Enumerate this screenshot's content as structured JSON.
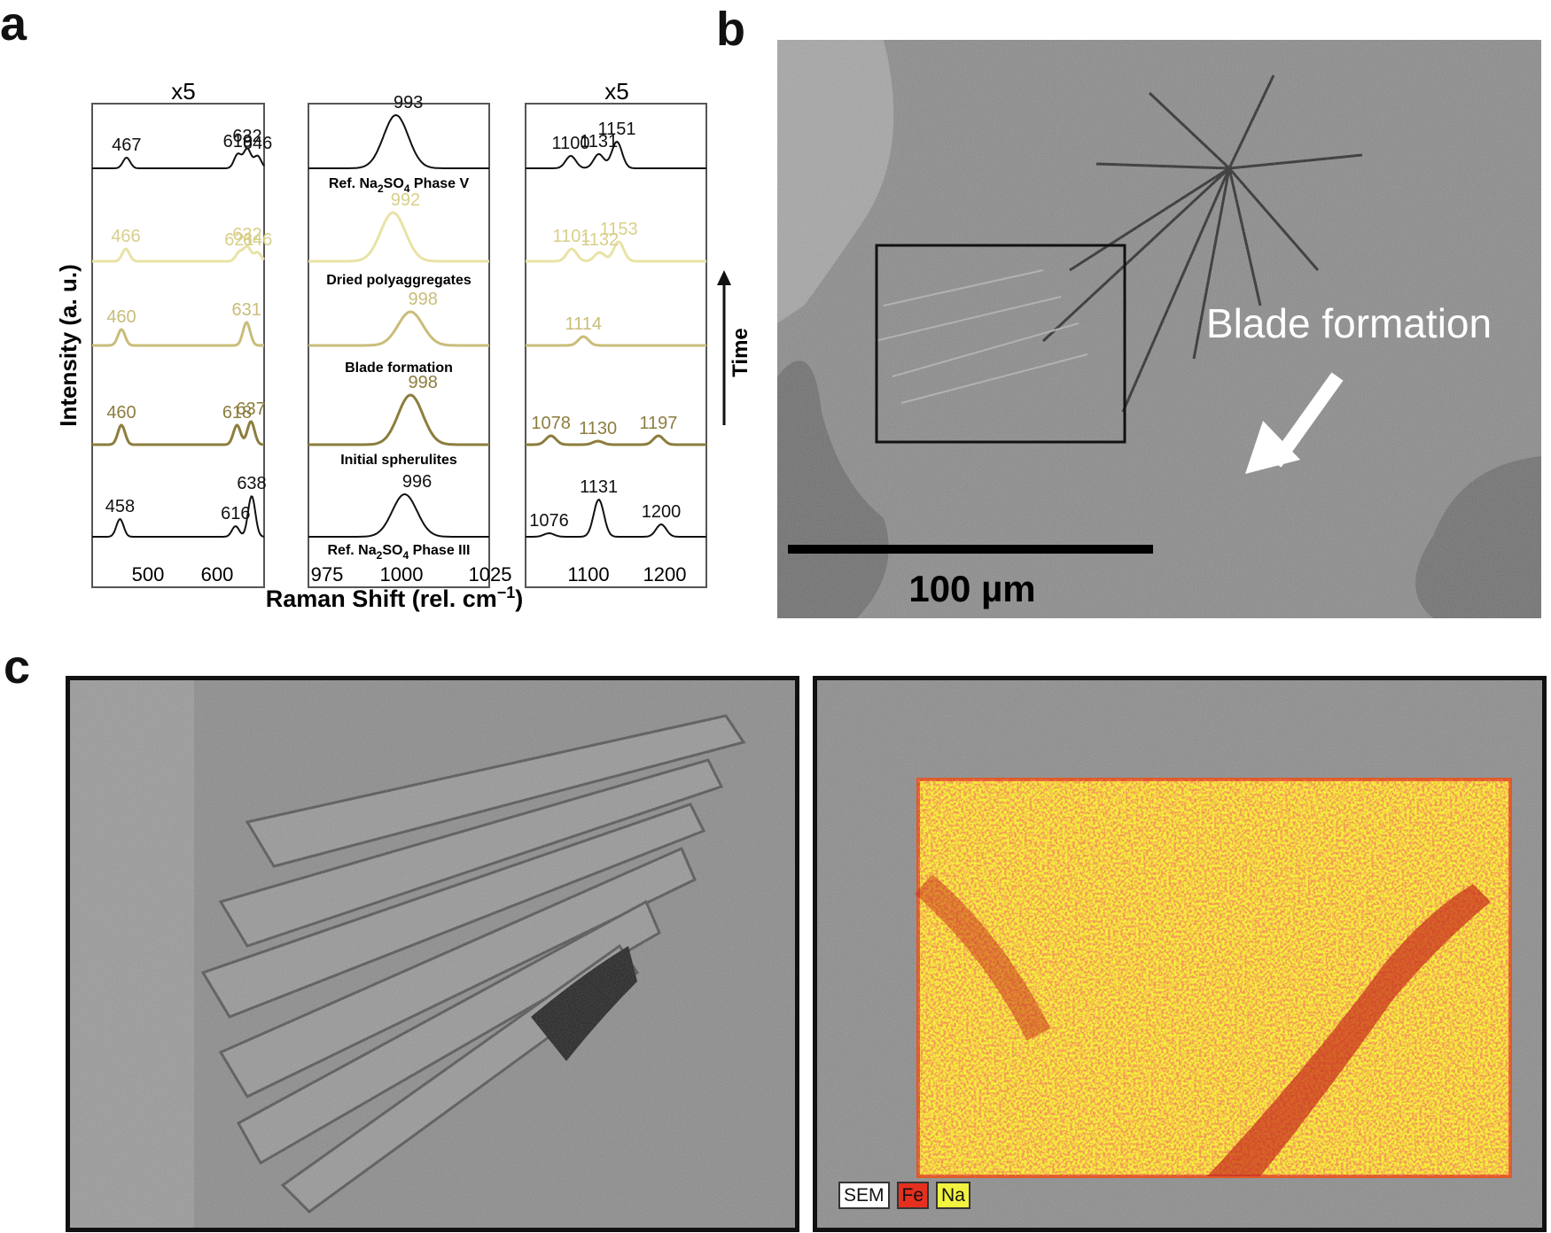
{
  "panels": {
    "a": "a",
    "b": "b",
    "c": "c"
  },
  "raman": {
    "ylabel": "Intensity (a. u.)",
    "xlabel": "Raman Shift (rel. cm",
    "xlabel_sup": "−1",
    "xlabel_close": ")",
    "time_label": "Time",
    "left_title": "x5",
    "right_title": "x5",
    "left_ticks": [
      "500",
      "600"
    ],
    "mid_ticks": [
      "975",
      "1000",
      "1025"
    ],
    "right_ticks": [
      "1100",
      "1200"
    ],
    "conditions": [
      "Ref. Na2SO4 Phase V",
      "Dried polyaggregates",
      "Blade formation",
      "Initial spherulites",
      "Ref. Na2SO4 Phase III"
    ],
    "colors": [
      "#111111",
      "#e8e3a6",
      "#c9bd79",
      "#8c7d3e",
      "#111111"
    ]
  },
  "chart_data": {
    "type": "line",
    "xlabel": "Raman Shift (rel. cm−1)",
    "ylabel": "Intensity (a. u.)",
    "panels": [
      {
        "name": "left",
        "annotation": "x5",
        "xlim": [
          420,
          655
        ],
        "ticks": [
          500,
          600
        ]
      },
      {
        "name": "middle",
        "xlim": [
          963,
          1025
        ],
        "ticks": [
          975,
          1000,
          1025
        ]
      },
      {
        "name": "right",
        "annotation": "x5",
        "xlim": [
          1050,
          1250
        ],
        "ticks": [
          1100,
          1200
        ]
      }
    ],
    "series": [
      {
        "name": "Ref. Na2SO4 Phase V",
        "left_peaks": [
          467,
          619,
          632,
          646
        ],
        "middle_peaks": [
          993
        ],
        "right_peaks": [
          1100,
          1131,
          1151
        ]
      },
      {
        "name": "Dried polyaggregates",
        "left_peaks": [
          466,
          621,
          632,
          646
        ],
        "middle_peaks": [
          992
        ],
        "right_peaks": [
          1101,
          1132,
          1153
        ]
      },
      {
        "name": "Blade formation",
        "left_peaks": [
          460,
          631
        ],
        "middle_peaks": [
          998
        ],
        "right_peaks": [
          1114
        ]
      },
      {
        "name": "Initial spherulites",
        "left_peaks": [
          460,
          618,
          637
        ],
        "middle_peaks": [
          998
        ],
        "right_peaks": [
          1078,
          1130,
          1197
        ]
      },
      {
        "name": "Ref. Na2SO4 Phase III",
        "left_peaks": [
          458,
          616,
          638
        ],
        "middle_peaks": [
          996
        ],
        "right_peaks": [
          1076,
          1131,
          1200
        ]
      }
    ]
  },
  "sem_b": {
    "label": "Blade formation",
    "scale_bar": "100 µm"
  },
  "edx_legend": [
    "SEM",
    "Fe",
    "Na"
  ]
}
